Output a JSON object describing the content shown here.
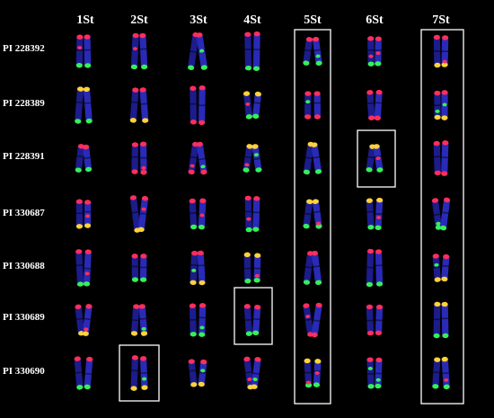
{
  "columns": [
    "1St",
    "2St",
    "3St",
    "4St",
    "5St",
    "6St",
    "7St"
  ],
  "rows": [
    "PI 228392",
    "PI 228389",
    "PI 228391",
    "PI 330687",
    "PI 330688",
    "PI 330689",
    "PI 330690"
  ],
  "colors": {
    "background": "#000000",
    "chromosome": "#2a2ab8",
    "chromosome_dark": "#1c1c8c",
    "signal_red": "#ff2e5c",
    "signal_green": "#35f05a",
    "signal_yellow": "#ffd23a",
    "label": "#ffffff",
    "box": "#ffffff"
  }
}
